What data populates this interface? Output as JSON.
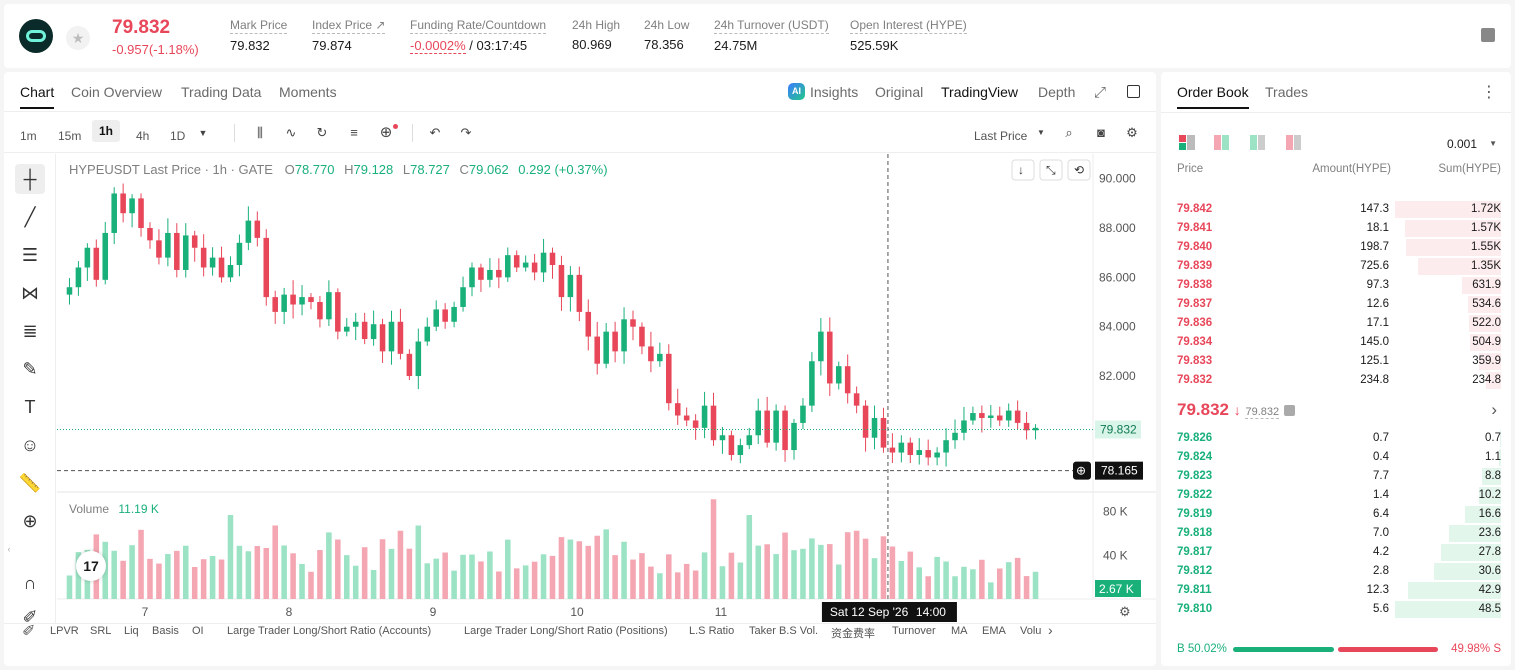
{
  "header": {
    "last_price": "79.832",
    "change": "-0.957(-1.18%)",
    "stats": [
      {
        "label": "Mark Price",
        "value": "79.832"
      },
      {
        "label": "Index Price ↗",
        "value": "79.874"
      },
      {
        "label": "Funding Rate/Countdown",
        "value_red": "-0.0002%",
        "value": " / 03:17:45"
      },
      {
        "label": "24h High",
        "value": "80.969"
      },
      {
        "label": "24h Low",
        "value": "78.356"
      },
      {
        "label": "24h Turnover (USDT)",
        "value": "24.75M"
      },
      {
        "label": "Open Interest (HYPE)",
        "value": "525.59K"
      }
    ]
  },
  "chart_tabs": [
    "Chart",
    "Coin Overview",
    "Trading Data",
    "Moments"
  ],
  "view_tabs": {
    "ai_badge": "AI",
    "insights": "Insights",
    "original": "Original",
    "tradingview": "TradingView",
    "depth": "Depth"
  },
  "intervals": [
    "1m",
    "15m",
    "1h",
    "4h",
    "1D"
  ],
  "price_type": "Last Price",
  "legend": {
    "title": "HYPEUSDT Last Price · 1h · GATE",
    "o_label": "O",
    "o": "78.770",
    "h_label": "H",
    "h": "79.128",
    "l_label": "L",
    "l": "78.727",
    "c_label": "C",
    "c": "79.062",
    "change": "0.292 (+0.37%)"
  },
  "volume_legend": {
    "label": "Volume",
    "value": "11.19 K"
  },
  "crosshair": {
    "price_label": "78.165",
    "time_label": "Sat 12 Sep '26",
    "time_hour": "14:00"
  },
  "current_price_tag": "79.832",
  "volume_tag": "2.67 K",
  "bottom_indicators": [
    "LPVR",
    "SRL",
    "Liq",
    "Basis",
    "OI",
    "Large Trader Long/Short Ratio (Accounts)",
    "Large Trader Long/Short Ratio (Positions)",
    "L.S Ratio",
    "Taker B.S Vol.",
    "资金费率",
    "Turnover",
    "MA",
    "EMA",
    "Volu"
  ],
  "chart_data": {
    "type": "candlestick",
    "price_axis_ticks": [
      "90.000",
      "88.000",
      "86.000",
      "84.000",
      "82.000"
    ],
    "price_axis_range": [
      77.3,
      91.0
    ],
    "volume_axis_ticks": [
      "80 K",
      "40 K"
    ],
    "volume_axis_max": 96000,
    "x_ticks": [
      "7",
      "8",
      "9",
      "10",
      "11",
      "12"
    ],
    "close_path": [
      85.6,
      86.4,
      87.2,
      85.9,
      87.8,
      89.4,
      88.6,
      89.2,
      88.0,
      87.5,
      86.8,
      87.8,
      86.3,
      87.7,
      87.2,
      86.4,
      86.8,
      86.0,
      86.5,
      87.4,
      88.3,
      87.6,
      85.2,
      84.6,
      85.3,
      84.9,
      85.2,
      85.0,
      84.3,
      85.4,
      83.8,
      84.0,
      84.2,
      83.5,
      84.1,
      83.0,
      84.2,
      82.9,
      82.0,
      83.4,
      84.0,
      84.7,
      84.2,
      84.8,
      85.6,
      86.4,
      85.9,
      86.3,
      86.0,
      86.9,
      86.4,
      86.6,
      86.2,
      87.0,
      86.5,
      85.2,
      86.1,
      84.6,
      83.6,
      82.5,
      83.8,
      83.0,
      84.3,
      84.0,
      83.2,
      82.6,
      82.9,
      80.9,
      80.4,
      80.2,
      79.9,
      80.8,
      79.4,
      79.6,
      78.8,
      79.2,
      79.6,
      80.6,
      79.3,
      80.6,
      79.0,
      80.1,
      80.8,
      82.6,
      83.8,
      81.7,
      82.4,
      81.3,
      80.8,
      79.5,
      80.3,
      79.1,
      78.9,
      79.3,
      78.8,
      79.0,
      78.7,
      78.9,
      79.4,
      79.7,
      80.2,
      80.5,
      80.3,
      80.4,
      80.2,
      80.6,
      80.1,
      79.8,
      79.9
    ]
  },
  "orderbook": {
    "tabs": [
      "Order Book",
      "Trades"
    ],
    "precision": "0.001",
    "col_price": "Price",
    "col_amount": "Amount(HYPE)",
    "col_sum": "Sum(HYPE)",
    "asks": [
      {
        "price": "79.842",
        "amount": "147.3",
        "sum": "1.72K",
        "depth": 1.0
      },
      {
        "price": "79.841",
        "amount": "18.1",
        "sum": "1.57K",
        "depth": 0.91
      },
      {
        "price": "79.840",
        "amount": "198.7",
        "sum": "1.55K",
        "depth": 0.9
      },
      {
        "price": "79.839",
        "amount": "725.6",
        "sum": "1.35K",
        "depth": 0.78
      },
      {
        "price": "79.838",
        "amount": "97.3",
        "sum": "631.9",
        "depth": 0.37
      },
      {
        "price": "79.837",
        "amount": "12.6",
        "sum": "534.6",
        "depth": 0.31
      },
      {
        "price": "79.836",
        "amount": "17.1",
        "sum": "522.0",
        "depth": 0.3
      },
      {
        "price": "79.834",
        "amount": "145.0",
        "sum": "504.9",
        "depth": 0.29
      },
      {
        "price": "79.833",
        "amount": "125.1",
        "sum": "359.9",
        "depth": 0.21
      },
      {
        "price": "79.832",
        "amount": "234.8",
        "sum": "234.8",
        "depth": 0.14
      }
    ],
    "mid_price": "79.832",
    "mark_price": "79.832",
    "bids": [
      {
        "price": "79.826",
        "amount": "0.7",
        "sum": "0.7",
        "depth": 0.01
      },
      {
        "price": "79.824",
        "amount": "0.4",
        "sum": "1.1",
        "depth": 0.02
      },
      {
        "price": "79.823",
        "amount": "7.7",
        "sum": "8.8",
        "depth": 0.18
      },
      {
        "price": "79.822",
        "amount": "1.4",
        "sum": "10.2",
        "depth": 0.21
      },
      {
        "price": "79.819",
        "amount": "6.4",
        "sum": "16.6",
        "depth": 0.34
      },
      {
        "price": "79.818",
        "amount": "7.0",
        "sum": "23.6",
        "depth": 0.49
      },
      {
        "price": "79.817",
        "amount": "4.2",
        "sum": "27.8",
        "depth": 0.57
      },
      {
        "price": "79.812",
        "amount": "2.8",
        "sum": "30.6",
        "depth": 0.63
      },
      {
        "price": "79.811",
        "amount": "12.3",
        "sum": "42.9",
        "depth": 0.88
      },
      {
        "price": "79.810",
        "amount": "5.6",
        "sum": "48.5",
        "depth": 1.0
      }
    ],
    "buy_ratio_label": "B 50.02%",
    "sell_ratio_label": "49.98% S",
    "buy_ratio": 0.5002
  },
  "colors": {
    "up": "#19b07a",
    "down": "#e8475a",
    "up_vol": "#9be3c4",
    "down_vol": "#f4a7b2"
  }
}
